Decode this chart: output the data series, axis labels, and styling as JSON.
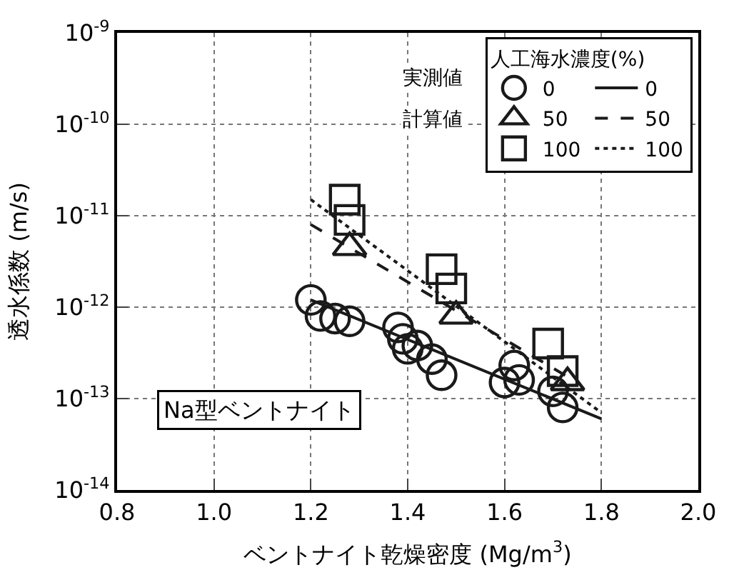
{
  "chart_data": {
    "type": "scatter",
    "xlabel": "ベントナイト乾燥密度 (Mg/m$^{3}$)",
    "ylabel": "透水係数 (m/s)",
    "legend_title": "人工海水濃度(%)",
    "log": "y",
    "grid": true,
    "legend": "top right",
    "xlim": [
      0.8,
      2.0
    ],
    "xticks": [
      {
        "value": 0.8,
        "label": "0.8"
      },
      {
        "value": 1.0,
        "label": "1.0"
      },
      {
        "value": 1.2,
        "label": "1.2"
      },
      {
        "value": 1.4,
        "label": "1.4"
      },
      {
        "value": 1.6,
        "label": "1.6"
      },
      {
        "value": 1.8,
        "label": "1.8"
      },
      {
        "value": 2.0,
        "label": "2.0"
      }
    ],
    "ylim": [
      1e-14,
      1e-09
    ],
    "yticks": [
      {
        "value": 1e-14,
        "label": "10$^{-14}$"
      },
      {
        "value": 1e-13,
        "label": "10$^{-13}$"
      },
      {
        "value": 1e-12,
        "label": "10$^{-12}$"
      },
      {
        "value": 1e-11,
        "label": "10$^{-11}$"
      },
      {
        "value": 1e-10,
        "label": "10$^{-10}$"
      },
      {
        "value": 1e-09,
        "label": "10$^{-9}$"
      }
    ],
    "annotations": [
      "実測値",
      "計算値",
      "Na型ベントナイト"
    ],
    "series": [
      {
        "name": "0",
        "marker": "circle",
        "color": "#1a1a1a",
        "x": [
          1.2,
          1.22,
          1.25,
          1.28,
          1.38,
          1.39,
          1.4,
          1.42,
          1.45,
          1.47,
          1.6,
          1.62,
          1.63,
          1.7,
          1.72
        ],
        "values": [
          1.2e-12,
          8e-13,
          7.5e-13,
          7e-13,
          6e-13,
          4.5e-13,
          3.5e-13,
          3.8e-13,
          2.7e-13,
          1.8e-13,
          1.5e-13,
          2.3e-13,
          1.6e-13,
          1.2e-13,
          8e-14
        ]
      },
      {
        "name": "50",
        "marker": "triangle",
        "color": "#1a1a1a",
        "x": [
          1.28,
          1.5,
          1.73
        ],
        "values": [
          4.5e-12,
          8e-13,
          1.5e-13
        ]
      },
      {
        "name": "100",
        "marker": "square",
        "color": "#1a1a1a",
        "x": [
          1.27,
          1.28,
          1.47,
          1.49,
          1.69,
          1.72
        ],
        "values": [
          1.5e-11,
          9e-12,
          2.6e-12,
          1.6e-12,
          4e-13,
          2e-13
        ]
      },
      {
        "name": "0",
        "type": "line",
        "line_style": "solid",
        "color": "#1a1a1a",
        "x": [
          1.2,
          1.8
        ],
        "values": [
          1.2e-12,
          6e-14
        ]
      },
      {
        "name": "50",
        "type": "line",
        "line_style": "dashed",
        "color": "#1a1a1a",
        "x": [
          1.2,
          1.75
        ],
        "values": [
          8e-12,
          1.5e-13
        ]
      },
      {
        "name": "100",
        "type": "line",
        "line_style": "dotted",
        "color": "#1a1a1a",
        "x": [
          1.2,
          1.8
        ],
        "values": [
          1.5e-11,
          7e-14
        ]
      }
    ]
  }
}
